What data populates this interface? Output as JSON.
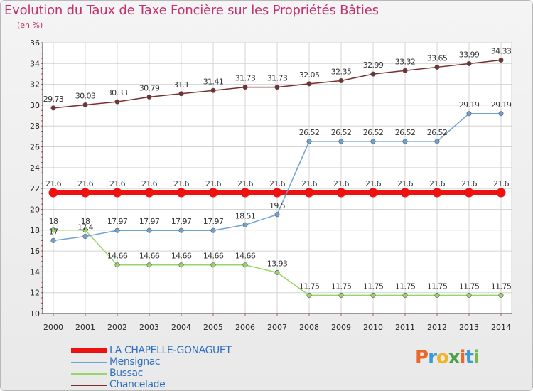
{
  "header": {
    "title": "Evolution du Taux de Taxe Foncière sur les Propriétés Bâties",
    "subtitle": "(en %)"
  },
  "logo": {
    "text": "Proxiti",
    "colors": [
      "#e8692a",
      "#3a9ad9",
      "#f0b32a",
      "#4aa34a",
      "#e8692a",
      "#3a9ad9",
      "#7ab648"
    ]
  },
  "chart_data": {
    "type": "line",
    "x": [
      "2000",
      "2001",
      "2002",
      "2003",
      "2004",
      "2005",
      "2006",
      "2007",
      "2008",
      "2009",
      "2010",
      "2011",
      "2012",
      "2013",
      "2014"
    ],
    "ylim": [
      10,
      36
    ],
    "yticks": [
      10,
      12,
      14,
      16,
      18,
      20,
      22,
      24,
      26,
      28,
      30,
      32,
      34,
      36
    ],
    "grid": true,
    "legend_position": "bottom-left",
    "series": [
      {
        "name": "LA CHAPELLE-GONAGUET",
        "color": "#ee1111",
        "values": [
          21.6,
          21.6,
          21.6,
          21.6,
          21.6,
          21.6,
          21.6,
          21.6,
          21.6,
          21.6,
          21.6,
          21.6,
          21.6,
          21.6,
          21.6
        ],
        "labels": [
          "21.6",
          "21.6",
          "21.6",
          "21.6",
          "21.6",
          "21.6",
          "21.6",
          "21.6",
          "21.6",
          "21.6",
          "21.6",
          "21.6",
          "21.6",
          "21.6",
          "21.6"
        ]
      },
      {
        "name": "Mensignac",
        "color": "#6da2d3",
        "values": [
          17,
          17.4,
          17.97,
          17.97,
          17.97,
          17.97,
          18.51,
          19.5,
          26.52,
          26.52,
          26.52,
          26.52,
          26.52,
          29.19,
          29.19
        ],
        "labels": [
          "17",
          "17.4",
          "17.97",
          "17.97",
          "17.97",
          "17.97",
          "18.51",
          "19.5",
          "26.52",
          "26.52",
          "26.52",
          "26.52",
          "26.52",
          "29.19",
          "29.19"
        ]
      },
      {
        "name": "Bussac",
        "color": "#97d568",
        "values": [
          18,
          18,
          14.66,
          14.66,
          14.66,
          14.66,
          14.66,
          13.93,
          11.75,
          11.75,
          11.75,
          11.75,
          11.75,
          11.75,
          11.75
        ],
        "labels": [
          "18",
          "18",
          "14.66",
          "14.66",
          "14.66",
          "14.66",
          "14.66",
          "13.93",
          "11.75",
          "11.75",
          "11.75",
          "11.75",
          "11.75",
          "11.75",
          "11.75"
        ]
      },
      {
        "name": "Chancelade",
        "color": "#7a2f2f",
        "values": [
          29.73,
          30.03,
          30.33,
          30.79,
          31.1,
          31.41,
          31.73,
          31.73,
          32.05,
          32.35,
          32.99,
          33.32,
          33.65,
          33.99,
          34.33
        ],
        "labels": [
          "29.73",
          "30.03",
          "30.33",
          "30.79",
          "31.1",
          "31.41",
          "31.73",
          "31.73",
          "32.05",
          "32.35",
          "32.99",
          "33.32",
          "33.65",
          "33.99",
          "34.33"
        ]
      }
    ]
  }
}
